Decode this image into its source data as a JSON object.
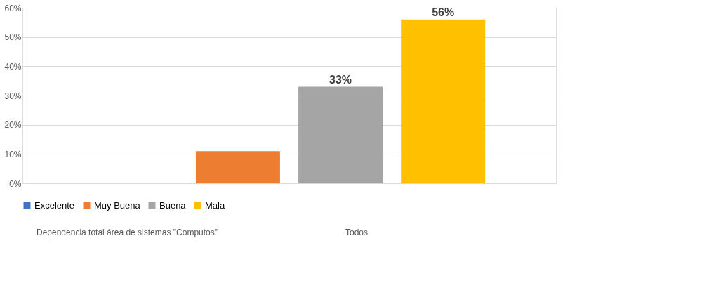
{
  "chart_data": {
    "type": "bar",
    "categories": [
      null
    ],
    "series": [
      {
        "name": "Excelente",
        "color": "#4472c4",
        "values": [
          0
        ],
        "value_labels": [
          null
        ]
      },
      {
        "name": "Muy Buena",
        "color": "#ed7d31",
        "values": [
          11
        ],
        "value_labels": [
          null
        ]
      },
      {
        "name": "Buena",
        "color": "#a5a5a5",
        "values": [
          33
        ],
        "value_labels": [
          "33%"
        ]
      },
      {
        "name": "Mala",
        "color": "#ffc000",
        "values": [
          56
        ],
        "value_labels": [
          "56%"
        ]
      }
    ],
    "ylim": [
      0,
      60
    ],
    "yticks": [
      {
        "value": 0,
        "label": "0%"
      },
      {
        "value": 10,
        "label": "10%"
      },
      {
        "value": 20,
        "label": "20%"
      },
      {
        "value": 30,
        "label": "30%"
      },
      {
        "value": 40,
        "label": "40%"
      },
      {
        "value": 50,
        "label": "50%"
      },
      {
        "value": 60,
        "label": "60%"
      }
    ],
    "grid": "y",
    "legend": "bottom",
    "tick_labels": "y",
    "annotations": [
      "Dependencia total área de sistemas \"Computos\"",
      "Todos"
    ]
  }
}
